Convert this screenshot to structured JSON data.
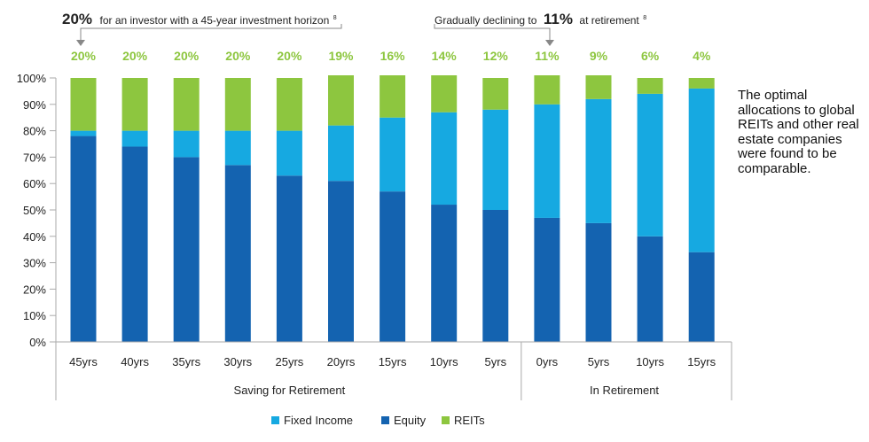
{
  "chart_data": {
    "type": "bar",
    "stacked": true,
    "categories": [
      "45yrs",
      "40yrs",
      "35yrs",
      "30yrs",
      "25yrs",
      "20yrs",
      "15yrs",
      "10yrs",
      "5yrs",
      "0yrs",
      "5yrs",
      "10yrs",
      "15yrs"
    ],
    "series": [
      {
        "name": "Equity",
        "color": "#1463b0",
        "values": [
          78,
          74,
          70,
          67,
          63,
          61,
          57,
          52,
          50,
          47,
          45,
          40,
          34
        ]
      },
      {
        "name": "Fixed Income",
        "color": "#16a9e1",
        "values": [
          2,
          6,
          10,
          13,
          17,
          21,
          28,
          35,
          38,
          43,
          47,
          54,
          62
        ]
      },
      {
        "name": "REITs",
        "color": "#8dc63f",
        "values": [
          20,
          20,
          20,
          20,
          20,
          19,
          16,
          14,
          12,
          11,
          9,
          6,
          4
        ]
      }
    ],
    "top_labels": [
      "20%",
      "20%",
      "20%",
      "20%",
      "20%",
      "19%",
      "16%",
      "14%",
      "12%",
      "11%",
      "9%",
      "6%",
      "4%"
    ],
    "top_label_color": "#8dc63f",
    "y_ticks": [
      "0%",
      "10%",
      "20%",
      "30%",
      "40%",
      "50%",
      "60%",
      "70%",
      "80%",
      "90%",
      "100%"
    ],
    "ylim": [
      0,
      100
    ],
    "groups": [
      {
        "label": "Saving for Retirement",
        "start": 0,
        "end": 8
      },
      {
        "label": "In Retirement",
        "start": 9,
        "end": 12
      }
    ],
    "legend": [
      "Fixed Income",
      "Equity",
      "REITs"
    ],
    "annotations": {
      "left": {
        "big": "20%",
        "text": "for an investor with a 45-year investment horizon",
        "sup": "8"
      },
      "right": {
        "pre": "Gradually declining to",
        "big": "11%",
        "post": "at retirement",
        "sup": "8"
      }
    },
    "side_note": "The optimal allocations to global REITs and other real estate companies were found to be comparable."
  }
}
